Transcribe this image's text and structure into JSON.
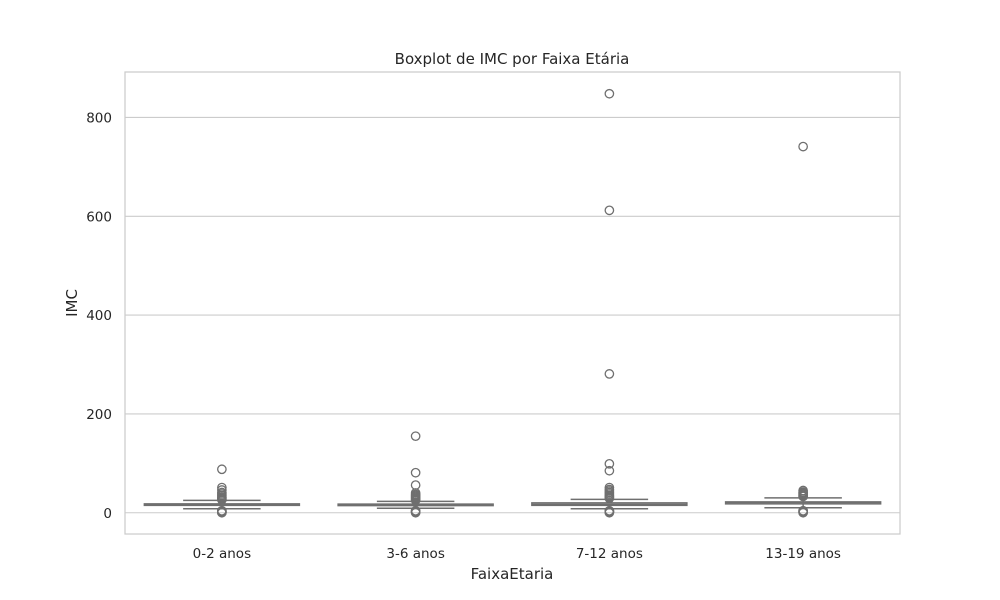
{
  "chart_data": {
    "type": "boxplot",
    "title": "Boxplot de IMC por Faixa Etária",
    "xlabel": "FaixaEtaria",
    "ylabel": "IMC",
    "ylim": [
      -43,
      892
    ],
    "yticks": [
      0,
      200,
      400,
      600,
      800
    ],
    "grid": "horizontal",
    "box_color": "#6f6f6f",
    "categories": [
      "0-2 anos",
      "3-6 anos",
      "7-12 anos",
      "13-19 anos"
    ],
    "boxes": [
      {
        "category": "0-2 anos",
        "whislo": 8,
        "q1": 15,
        "med": 16.5,
        "q3": 18,
        "whishi": 25,
        "outliers": [
          88,
          51,
          46,
          41,
          38,
          35,
          32,
          30,
          28,
          26,
          4,
          3,
          2,
          1,
          0.5,
          0
        ]
      },
      {
        "category": "3-6 anos",
        "whislo": 9,
        "q1": 14.5,
        "med": 16,
        "q3": 17.5,
        "whishi": 23,
        "outliers": [
          155,
          81,
          56,
          40,
          37,
          35,
          33,
          31,
          29,
          27,
          25,
          4,
          3,
          2,
          1,
          0
        ]
      },
      {
        "category": "7-12 anos",
        "whislo": 8,
        "q1": 15,
        "med": 17,
        "q3": 20,
        "whishi": 27,
        "outliers": [
          848,
          612,
          281,
          99,
          85,
          51,
          47,
          44,
          41,
          38,
          35,
          33,
          31,
          29,
          4,
          3,
          2,
          1,
          0
        ]
      },
      {
        "category": "13-19 anos",
        "whislo": 10,
        "q1": 18,
        "med": 20.5,
        "q3": 22,
        "whishi": 30,
        "outliers": [
          741,
          45,
          42,
          40,
          38,
          36,
          34,
          33,
          4,
          3,
          2,
          1,
          0
        ]
      }
    ]
  }
}
